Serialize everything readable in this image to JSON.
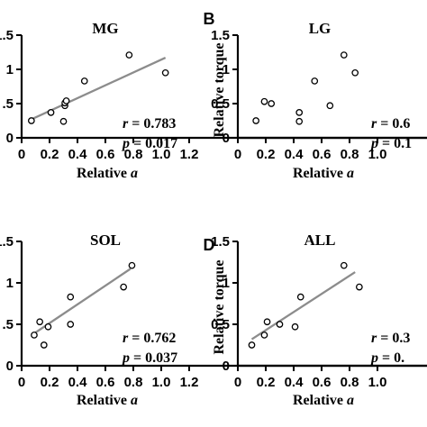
{
  "chart_data": [
    {
      "type": "scatter",
      "title": "MG",
      "panel_label": "",
      "xlabel": "Relative",
      "xlabel_var": "a",
      "ylabel": "",
      "xlim": [
        0,
        1.2
      ],
      "ylim": [
        0,
        1.5
      ],
      "x_ticks": [
        "0",
        "0.2",
        "0.4",
        "0.6",
        "0.8",
        "1.0",
        "1.2"
      ],
      "y_ticks": [
        "0",
        ".5",
        "1",
        "1.5"
      ],
      "x": [
        0.07,
        0.21,
        0.3,
        0.31,
        0.31,
        0.32,
        0.45,
        0.77,
        1.03
      ],
      "y": [
        0.25,
        0.37,
        0.24,
        0.47,
        0.51,
        0.54,
        0.83,
        1.21,
        0.95
      ],
      "fit_line": {
        "x": [
          0.07,
          1.03
        ],
        "y": [
          0.27,
          1.17
        ]
      },
      "stats": {
        "r": "r = 0.783",
        "p": "p = 0.017"
      },
      "grid": false
    },
    {
      "type": "scatter",
      "title": "LG",
      "panel_label": "B",
      "xlabel": "Relative",
      "xlabel_var": "a",
      "ylabel": "Relative torque",
      "xlim": [
        0,
        1.2
      ],
      "ylim": [
        0,
        1.5
      ],
      "x_ticks": [
        "0",
        "0.2",
        "0.4",
        "0.6",
        "0.8",
        "1.0"
      ],
      "y_ticks": [
        "0",
        "0.5",
        "1",
        "1.5"
      ],
      "x": [
        0.13,
        0.19,
        0.24,
        0.44,
        0.44,
        0.55,
        0.66,
        0.76,
        0.84
      ],
      "y": [
        0.25,
        0.53,
        0.5,
        0.24,
        0.37,
        0.83,
        0.47,
        1.21,
        0.95
      ],
      "fit_line": null,
      "stats": {
        "r": "r = 0.6",
        "p": "p = 0.1"
      },
      "grid": false
    },
    {
      "type": "scatter",
      "title": "SOL",
      "panel_label": "",
      "xlabel": "Relative",
      "xlabel_var": "a",
      "ylabel": "",
      "xlim": [
        0,
        1.2
      ],
      "ylim": [
        0,
        1.5
      ],
      "x_ticks": [
        "0",
        "0.2",
        "0.4",
        "0.6",
        "0.8",
        "1.0",
        "1.2"
      ],
      "y_ticks": [
        "0",
        ".5",
        "1",
        "1.5"
      ],
      "x": [
        0.09,
        0.13,
        0.16,
        0.19,
        0.35,
        0.35,
        0.73,
        0.79
      ],
      "y": [
        0.37,
        0.53,
        0.25,
        0.47,
        0.5,
        0.83,
        0.95,
        1.21
      ],
      "fit_line": {
        "x": [
          0.09,
          0.78
        ],
        "y": [
          0.39,
          1.17
        ]
      },
      "stats": {
        "r": "r = 0.762",
        "p": "p = 0.037"
      },
      "grid": false
    },
    {
      "type": "scatter",
      "title": "ALL",
      "panel_label": "D",
      "xlabel": "Relative",
      "xlabel_var": "a",
      "ylabel": "Relative torque",
      "xlim": [
        0,
        1.2
      ],
      "ylim": [
        0,
        1.5
      ],
      "x_ticks": [
        "0",
        "0.2",
        "0.4",
        "0.6",
        "0.8",
        "1.0"
      ],
      "y_ticks": [
        "0",
        "0.5",
        "1",
        "1.5"
      ],
      "x": [
        0.1,
        0.19,
        0.21,
        0.3,
        0.41,
        0.45,
        0.76,
        0.87
      ],
      "y": [
        0.25,
        0.37,
        0.53,
        0.5,
        0.47,
        0.83,
        1.21,
        0.95
      ],
      "fit_line": {
        "x": [
          0.1,
          0.84
        ],
        "y": [
          0.32,
          1.13
        ]
      },
      "stats": {
        "r": "r = 0.3",
        "p": "p = 0."
      },
      "grid": false
    }
  ]
}
